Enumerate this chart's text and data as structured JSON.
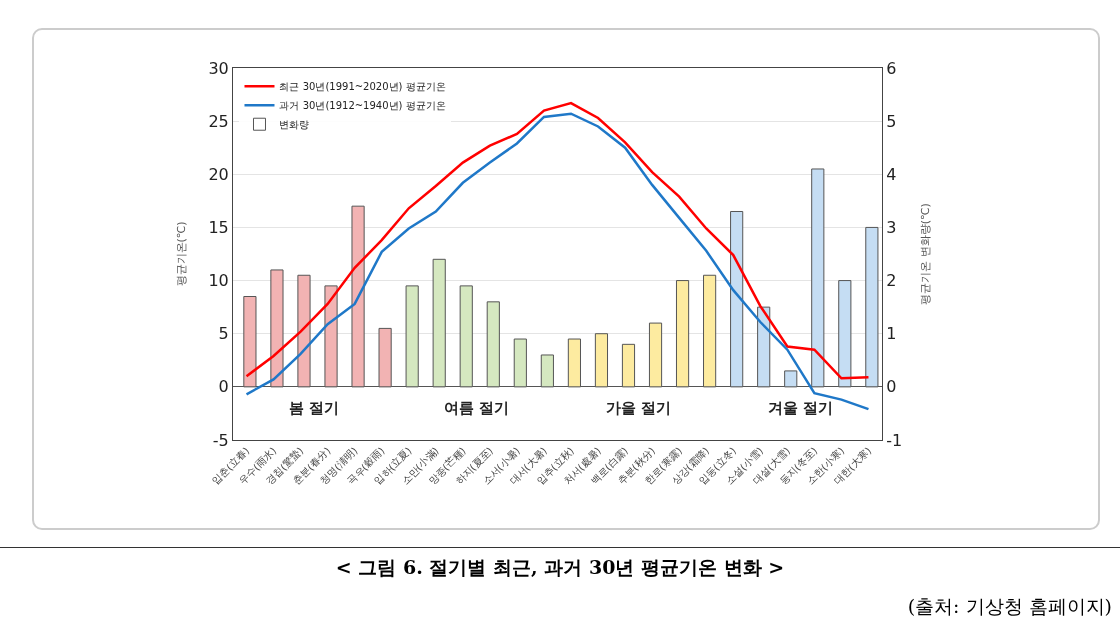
{
  "chart_data": {
    "type": "line",
    "title": "< 그림 6. 절기별 최근, 과거 30년 평균기온 변화 >",
    "ylabel": "평균기온(℃)",
    "y2label": "평균기온 변화량(℃)",
    "categories": [
      "입춘(立春)",
      "우수(雨水)",
      "경칩(驚蟄)",
      "춘분(春分)",
      "청명(淸明)",
      "곡우(穀雨)",
      "입하(立夏)",
      "소만(小滿)",
      "망종(芒種)",
      "하지(夏至)",
      "소서(小暑)",
      "대서(大暑)",
      "입추(立秋)",
      "처서(處暑)",
      "백로(白露)",
      "추분(秋分)",
      "한로(寒露)",
      "상강(霜降)",
      "입동(立冬)",
      "소설(小雪)",
      "대설(大雪)",
      "동지(冬至)",
      "소한(小寒)",
      "대한(大寒)"
    ],
    "series": [
      {
        "name": "최근 30년(1991~2020년) 평균기온",
        "axis": "y",
        "color": "#ff0000",
        "values": [
          1.0,
          2.9,
          5.2,
          7.8,
          11.2,
          13.8,
          16.8,
          18.9,
          21.1,
          22.7,
          23.8,
          26.0,
          26.7,
          25.3,
          23.0,
          20.2,
          17.9,
          14.9,
          12.4,
          7.6,
          3.8,
          3.5,
          0.8,
          0.9
        ]
      },
      {
        "name": "과거 30년(1912~1940년) 평균기온",
        "axis": "y",
        "color": "#1f78c8",
        "values": [
          -0.7,
          0.7,
          3.1,
          5.9,
          7.8,
          12.7,
          14.9,
          16.5,
          19.2,
          21.1,
          22.9,
          25.4,
          25.7,
          24.5,
          22.5,
          19.0,
          15.9,
          12.8,
          9.1,
          6.1,
          3.5,
          -0.6,
          -1.2,
          -2.1
        ]
      },
      {
        "name": "변화량",
        "type": "bar",
        "axis": "y2",
        "color": "#ffffff",
        "colors": [
          "#f2b3b3",
          "#f2b3b3",
          "#f2b3b3",
          "#f2b3b3",
          "#f2b3b3",
          "#f2b3b3",
          "#d5e8c0",
          "#d5e8c0",
          "#d5e8c0",
          "#d5e8c0",
          "#d5e8c0",
          "#d5e8c0",
          "#fdeba0",
          "#fdeba0",
          "#fdeba0",
          "#fdeba0",
          "#fdeba0",
          "#fdeba0",
          "#c5ddf3",
          "#c5ddf3",
          "#c5ddf3",
          "#c5ddf3",
          "#c5ddf3",
          "#c5ddf3"
        ],
        "values": [
          1.7,
          2.2,
          2.1,
          1.9,
          3.4,
          1.1,
          1.9,
          2.4,
          1.9,
          1.6,
          0.9,
          0.6,
          0.9,
          1.0,
          0.8,
          1.2,
          2.0,
          2.1,
          3.3,
          1.5,
          0.3,
          4.1,
          2.0,
          3.0
        ]
      }
    ],
    "ylim": [
      -5,
      30
    ],
    "yticks": [
      -5,
      0,
      5,
      10,
      15,
      20,
      25,
      30
    ],
    "y2lim": [
      -1,
      6
    ],
    "y2ticks": [
      -1,
      0,
      1,
      2,
      3,
      4,
      5,
      6
    ],
    "grid": "y",
    "legend": "top left",
    "annotations": [
      "봄 절기",
      "여름 절기",
      "가을 절기",
      "겨울 절기",
      "(출처: 기상청 홈페이지)"
    ]
  }
}
